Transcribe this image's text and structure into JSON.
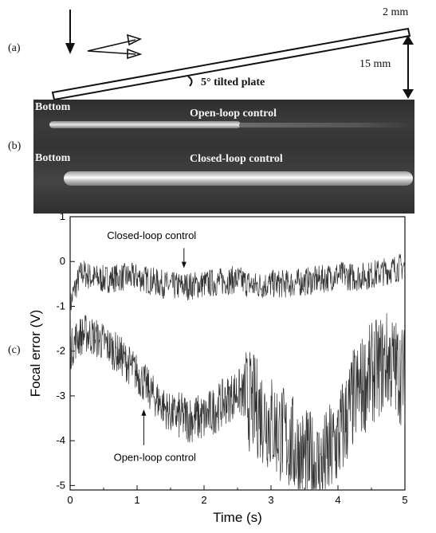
{
  "panel_a": {
    "label": "(a)",
    "thickness_label": "2 mm",
    "height_label": "15 mm",
    "tilt_label": "5° tilted plate"
  },
  "panel_b": {
    "label": "(b)",
    "top_side_label": "Bottom",
    "top_title": "Open-loop control",
    "bottom_side_label": "Bottom",
    "bottom_title": "Closed-loop control"
  },
  "panel_c": {
    "label": "(c)"
  },
  "chart_data": {
    "type": "line",
    "title": "",
    "xlabel": "Time (s)",
    "ylabel": "Focal error (V)",
    "xlim": [
      0,
      5
    ],
    "ylim": [
      -5.1,
      1
    ],
    "xticks": [
      0,
      1,
      2,
      3,
      4,
      5
    ],
    "yticks": [
      1,
      0,
      -1,
      -2,
      -3,
      -4,
      -5
    ],
    "grid": false,
    "annotations": [
      {
        "text": "Closed-loop control",
        "points_to": {
          "x": 1.7,
          "y": -0.15
        }
      },
      {
        "text": "Open-loop control",
        "points_to": {
          "x": 1.1,
          "y": -3.3
        }
      }
    ],
    "series": [
      {
        "name": "Closed-loop control",
        "x": [
          0,
          0.05,
          0.1,
          0.15,
          0.2,
          0.3,
          0.5,
          0.75,
          1,
          1.25,
          1.5,
          1.75,
          2,
          2.25,
          2.5,
          2.75,
          3,
          3.25,
          3.5,
          3.75,
          4,
          4.25,
          4.5,
          4.75,
          5
        ],
        "values": [
          -1.0,
          -0.7,
          -0.5,
          -0.3,
          -0.25,
          -0.35,
          -0.4,
          -0.35,
          -0.35,
          -0.45,
          -0.55,
          -0.55,
          -0.5,
          -0.45,
          -0.4,
          -0.55,
          -0.5,
          -0.5,
          -0.45,
          -0.4,
          -0.3,
          -0.35,
          -0.3,
          -0.2,
          -0.1
        ]
      },
      {
        "name": "Open-loop control",
        "x": [
          0,
          0.1,
          0.25,
          0.5,
          0.75,
          1,
          1.25,
          1.5,
          1.75,
          2,
          2.25,
          2.5,
          2.75,
          3,
          3.25,
          3.5,
          3.75,
          4,
          4.25,
          4.5,
          4.75,
          5
        ],
        "values": [
          -2.0,
          -1.7,
          -1.6,
          -1.8,
          -2.1,
          -2.5,
          -3.0,
          -3.4,
          -3.5,
          -3.5,
          -3.2,
          -2.9,
          -3.2,
          -3.6,
          -4.0,
          -4.4,
          -4.6,
          -4.0,
          -3.0,
          -2.5,
          -2.2,
          -2.6
        ]
      }
    ]
  }
}
